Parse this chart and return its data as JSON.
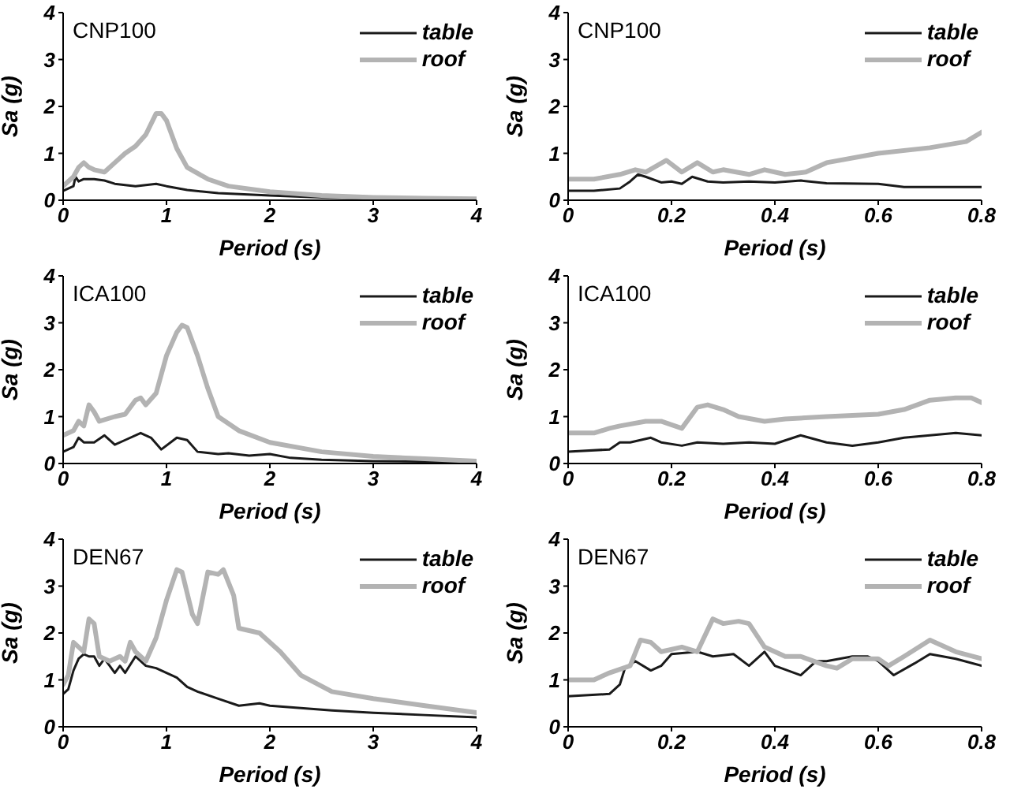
{
  "chart_data": [
    {
      "type": "line",
      "title": "CNP100",
      "xlabel": "Period (s)",
      "ylabel": "Sa (g)",
      "xlim": [
        0,
        4
      ],
      "xticks": [
        0,
        1,
        2,
        3,
        4
      ],
      "ylim": [
        0,
        4
      ],
      "yticks": [
        0,
        1,
        2,
        3,
        4
      ],
      "legend": "top right",
      "series": [
        {
          "name": "table",
          "color": "#1a1a1a",
          "x": [
            0,
            0.1,
            0.12,
            0.15,
            0.2,
            0.3,
            0.4,
            0.5,
            0.7,
            0.9,
            1.0,
            1.2,
            1.5,
            2,
            2.5,
            3,
            3.5,
            4
          ],
          "values": [
            0.2,
            0.3,
            0.5,
            0.4,
            0.45,
            0.45,
            0.42,
            0.35,
            0.3,
            0.35,
            0.3,
            0.22,
            0.15,
            0.1,
            0.06,
            0.04,
            0.03,
            0.02
          ]
        },
        {
          "name": "roof",
          "color": "#b3b3b3",
          "x": [
            0,
            0.1,
            0.15,
            0.2,
            0.25,
            0.3,
            0.4,
            0.5,
            0.6,
            0.7,
            0.8,
            0.9,
            0.95,
            1.0,
            1.1,
            1.2,
            1.4,
            1.6,
            2,
            2.5,
            3,
            3.5,
            4
          ],
          "values": [
            0.3,
            0.5,
            0.7,
            0.8,
            0.7,
            0.65,
            0.6,
            0.8,
            1.0,
            1.15,
            1.4,
            1.85,
            1.85,
            1.7,
            1.1,
            0.7,
            0.45,
            0.3,
            0.18,
            0.1,
            0.06,
            0.04,
            0.03
          ]
        }
      ]
    },
    {
      "type": "line",
      "title": "CNP100",
      "xlabel": "Period (s)",
      "ylabel": "Sa (g)",
      "xlim": [
        0,
        0.8
      ],
      "xticks": [
        0,
        0.2,
        0.4,
        0.6,
        0.8
      ],
      "ylim": [
        0,
        4
      ],
      "yticks": [
        0,
        1,
        2,
        3,
        4
      ],
      "legend": "top right",
      "series": [
        {
          "name": "table",
          "color": "#1a1a1a",
          "x": [
            0,
            0.05,
            0.1,
            0.12,
            0.135,
            0.15,
            0.18,
            0.2,
            0.22,
            0.24,
            0.27,
            0.3,
            0.35,
            0.4,
            0.45,
            0.5,
            0.6,
            0.65,
            0.7,
            0.8
          ],
          "values": [
            0.2,
            0.2,
            0.25,
            0.4,
            0.55,
            0.5,
            0.38,
            0.4,
            0.35,
            0.5,
            0.4,
            0.38,
            0.4,
            0.38,
            0.42,
            0.36,
            0.35,
            0.28,
            0.28,
            0.28
          ]
        },
        {
          "name": "roof",
          "color": "#b3b3b3",
          "x": [
            0,
            0.05,
            0.1,
            0.13,
            0.15,
            0.19,
            0.22,
            0.25,
            0.28,
            0.3,
            0.35,
            0.38,
            0.42,
            0.46,
            0.5,
            0.6,
            0.7,
            0.77,
            0.8
          ],
          "values": [
            0.45,
            0.45,
            0.55,
            0.65,
            0.6,
            0.85,
            0.6,
            0.8,
            0.6,
            0.65,
            0.55,
            0.65,
            0.55,
            0.6,
            0.8,
            1.0,
            1.12,
            1.25,
            1.45
          ]
        }
      ]
    },
    {
      "type": "line",
      "title": "ICA100",
      "xlabel": "Period (s)",
      "ylabel": "Sa (g)",
      "xlim": [
        0,
        4
      ],
      "xticks": [
        0,
        1,
        2,
        3,
        4
      ],
      "ylim": [
        0,
        4
      ],
      "yticks": [
        0,
        1,
        2,
        3,
        4
      ],
      "legend": "top right",
      "series": [
        {
          "name": "table",
          "color": "#1a1a1a",
          "x": [
            0,
            0.1,
            0.15,
            0.2,
            0.3,
            0.4,
            0.5,
            0.6,
            0.75,
            0.85,
            0.95,
            1.1,
            1.2,
            1.3,
            1.5,
            1.6,
            1.8,
            2,
            2.2,
            2.5,
            3,
            4
          ],
          "values": [
            0.25,
            0.35,
            0.55,
            0.45,
            0.45,
            0.6,
            0.4,
            0.5,
            0.65,
            0.55,
            0.3,
            0.55,
            0.5,
            0.25,
            0.2,
            0.22,
            0.17,
            0.2,
            0.12,
            0.08,
            0.05,
            0.03
          ]
        },
        {
          "name": "roof",
          "color": "#b3b3b3",
          "x": [
            0,
            0.1,
            0.15,
            0.2,
            0.25,
            0.3,
            0.35,
            0.5,
            0.6,
            0.7,
            0.75,
            0.8,
            0.9,
            1.0,
            1.1,
            1.15,
            1.2,
            1.3,
            1.4,
            1.5,
            1.7,
            2,
            2.5,
            3,
            3.5,
            4
          ],
          "values": [
            0.6,
            0.7,
            0.9,
            0.8,
            1.25,
            1.1,
            0.9,
            1.0,
            1.05,
            1.35,
            1.4,
            1.25,
            1.5,
            2.3,
            2.8,
            2.95,
            2.9,
            2.3,
            1.6,
            1.0,
            0.7,
            0.45,
            0.25,
            0.15,
            0.1,
            0.05
          ]
        }
      ]
    },
    {
      "type": "line",
      "title": "ICA100",
      "xlabel": "Period (s)",
      "ylabel": "Sa (g)",
      "xlim": [
        0,
        0.8
      ],
      "xticks": [
        0,
        0.2,
        0.4,
        0.6,
        0.8
      ],
      "ylim": [
        0,
        4
      ],
      "yticks": [
        0,
        1,
        2,
        3,
        4
      ],
      "legend": "top right",
      "series": [
        {
          "name": "table",
          "color": "#1a1a1a",
          "x": [
            0,
            0.08,
            0.1,
            0.12,
            0.16,
            0.18,
            0.22,
            0.25,
            0.3,
            0.35,
            0.4,
            0.45,
            0.5,
            0.55,
            0.6,
            0.65,
            0.75,
            0.8
          ],
          "values": [
            0.25,
            0.3,
            0.45,
            0.45,
            0.55,
            0.45,
            0.38,
            0.45,
            0.42,
            0.45,
            0.42,
            0.6,
            0.45,
            0.38,
            0.45,
            0.55,
            0.65,
            0.6
          ]
        },
        {
          "name": "roof",
          "color": "#b3b3b3",
          "x": [
            0,
            0.05,
            0.08,
            0.1,
            0.15,
            0.18,
            0.22,
            0.25,
            0.27,
            0.3,
            0.33,
            0.38,
            0.42,
            0.5,
            0.6,
            0.65,
            0.7,
            0.75,
            0.78,
            0.8
          ],
          "values": [
            0.65,
            0.65,
            0.75,
            0.8,
            0.9,
            0.9,
            0.75,
            1.2,
            1.25,
            1.15,
            1.0,
            0.9,
            0.95,
            1.0,
            1.05,
            1.15,
            1.35,
            1.4,
            1.4,
            1.3
          ]
        }
      ]
    },
    {
      "type": "line",
      "title": "DEN67",
      "xlabel": "Period (s)",
      "ylabel": "Sa (g)",
      "xlim": [
        0,
        4
      ],
      "xticks": [
        0,
        1,
        2,
        3,
        4
      ],
      "ylim": [
        0,
        4
      ],
      "yticks": [
        0,
        1,
        2,
        3,
        4
      ],
      "legend": "top right",
      "series": [
        {
          "name": "table",
          "color": "#1a1a1a",
          "x": [
            0,
            0.05,
            0.1,
            0.15,
            0.2,
            0.25,
            0.3,
            0.35,
            0.4,
            0.5,
            0.55,
            0.6,
            0.7,
            0.8,
            0.9,
            1.0,
            1.1,
            1.2,
            1.3,
            1.5,
            1.7,
            1.9,
            2,
            2.3,
            2.6,
            3,
            3.5,
            4
          ],
          "values": [
            0.7,
            0.8,
            1.2,
            1.45,
            1.55,
            1.5,
            1.5,
            1.3,
            1.45,
            1.15,
            1.3,
            1.15,
            1.5,
            1.3,
            1.25,
            1.15,
            1.05,
            0.85,
            0.75,
            0.6,
            0.45,
            0.5,
            0.45,
            0.4,
            0.35,
            0.3,
            0.25,
            0.2
          ]
        },
        {
          "name": "roof",
          "color": "#b3b3b3",
          "x": [
            0,
            0.05,
            0.1,
            0.15,
            0.2,
            0.25,
            0.3,
            0.35,
            0.45,
            0.55,
            0.6,
            0.65,
            0.7,
            0.8,
            0.9,
            1.0,
            1.1,
            1.15,
            1.25,
            1.3,
            1.4,
            1.5,
            1.55,
            1.65,
            1.7,
            1.9,
            2.1,
            2.3,
            2.6,
            3,
            3.5,
            4
          ],
          "values": [
            0.9,
            1.1,
            1.8,
            1.7,
            1.6,
            2.3,
            2.2,
            1.5,
            1.4,
            1.5,
            1.4,
            1.8,
            1.6,
            1.4,
            1.9,
            2.7,
            3.35,
            3.3,
            2.4,
            2.2,
            3.3,
            3.25,
            3.35,
            2.8,
            2.1,
            2.0,
            1.6,
            1.1,
            0.75,
            0.6,
            0.45,
            0.3
          ]
        }
      ]
    },
    {
      "type": "line",
      "title": "DEN67",
      "xlabel": "Period (s)",
      "ylabel": "Sa (g)",
      "xlim": [
        0,
        0.8
      ],
      "xticks": [
        0,
        0.2,
        0.4,
        0.6,
        0.8
      ],
      "ylim": [
        0,
        4
      ],
      "yticks": [
        0,
        1,
        2,
        3,
        4
      ],
      "legend": "top right",
      "series": [
        {
          "name": "table",
          "color": "#1a1a1a",
          "x": [
            0,
            0.08,
            0.1,
            0.11,
            0.13,
            0.16,
            0.18,
            0.2,
            0.25,
            0.28,
            0.32,
            0.35,
            0.38,
            0.4,
            0.45,
            0.48,
            0.5,
            0.55,
            0.58,
            0.6,
            0.63,
            0.67,
            0.7,
            0.75,
            0.8
          ],
          "values": [
            0.65,
            0.7,
            0.9,
            1.25,
            1.4,
            1.2,
            1.3,
            1.55,
            1.6,
            1.5,
            1.55,
            1.3,
            1.6,
            1.3,
            1.1,
            1.4,
            1.4,
            1.5,
            1.5,
            1.4,
            1.1,
            1.35,
            1.55,
            1.45,
            1.3
          ]
        },
        {
          "name": "roof",
          "color": "#b3b3b3",
          "x": [
            0,
            0.05,
            0.08,
            0.12,
            0.14,
            0.16,
            0.18,
            0.22,
            0.25,
            0.28,
            0.3,
            0.33,
            0.35,
            0.38,
            0.42,
            0.45,
            0.5,
            0.52,
            0.55,
            0.6,
            0.62,
            0.65,
            0.7,
            0.75,
            0.8
          ],
          "values": [
            1.0,
            1.0,
            1.15,
            1.3,
            1.85,
            1.8,
            1.6,
            1.7,
            1.6,
            2.3,
            2.2,
            2.25,
            2.2,
            1.7,
            1.5,
            1.5,
            1.3,
            1.25,
            1.45,
            1.45,
            1.3,
            1.5,
            1.85,
            1.6,
            1.45
          ]
        }
      ]
    }
  ]
}
